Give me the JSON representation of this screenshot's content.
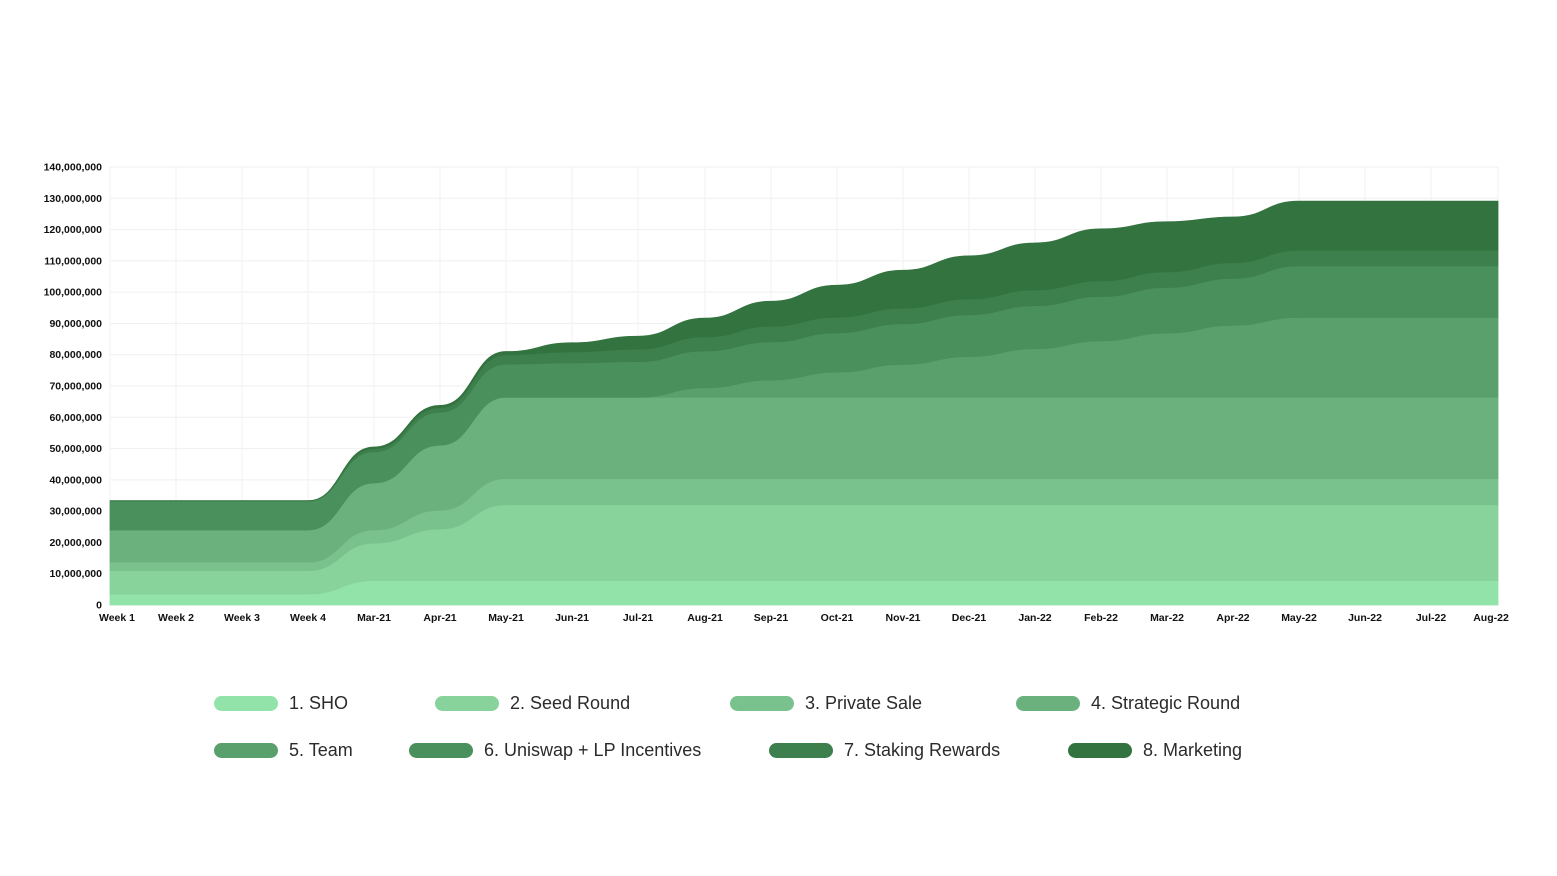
{
  "chart_data": {
    "type": "area",
    "stacked": true,
    "x": [
      "Week 1",
      "Week 2",
      "Week 3",
      "Week 4",
      "Mar-21",
      "Apr-21",
      "May-21",
      "Jun-21",
      "Jul-21",
      "Aug-21",
      "Sep-21",
      "Oct-21",
      "Nov-21",
      "Dec-21",
      "Jan-22",
      "Feb-22",
      "Mar-22",
      "Apr-22",
      "May-22",
      "Jun-22",
      "Jul-22",
      "Aug-22"
    ],
    "yticks": [
      "0",
      "10,000,000",
      "20,000,000",
      "30,000,000",
      "40,000,000",
      "50,000,000",
      "60,000,000",
      "70,000,000",
      "80,000,000",
      "90,000,000",
      "100,000,000",
      "110,000,000",
      "120,000,000",
      "130,000,000",
      "140,000,000"
    ],
    "ylim": [
      0,
      140000000
    ],
    "grid": true,
    "legend_position": "bottom",
    "series": [
      {
        "name": "1. SHO",
        "color": "#92e3a9",
        "values": [
          3500000,
          3500000,
          3500000,
          3500000,
          7800000,
          7800000,
          7800000,
          7800000,
          7800000,
          7800000,
          7800000,
          7800000,
          7800000,
          7800000,
          7800000,
          7800000,
          7800000,
          7800000,
          7800000,
          7800000,
          7800000,
          7800000
        ]
      },
      {
        "name": "2. Seed Round",
        "color": "#88d29c",
        "values": [
          7500000,
          7500000,
          7500000,
          7500000,
          12000000,
          16500000,
          24200000,
          24200000,
          24200000,
          24200000,
          24200000,
          24200000,
          24200000,
          24200000,
          24200000,
          24200000,
          24200000,
          24200000,
          24200000,
          24200000,
          24200000,
          24200000
        ]
      },
      {
        "name": "3. Private Sale",
        "color": "#79c18d",
        "values": [
          2700000,
          2700000,
          2700000,
          2700000,
          4200000,
          6000000,
          8400000,
          8400000,
          8400000,
          8400000,
          8400000,
          8400000,
          8400000,
          8400000,
          8400000,
          8400000,
          8400000,
          8400000,
          8400000,
          8400000,
          8400000,
          8400000
        ]
      },
      {
        "name": "4. Strategic Round",
        "color": "#6bb17e",
        "values": [
          10300000,
          10300000,
          10300000,
          10300000,
          15000000,
          20800000,
          26000000,
          26000000,
          26000000,
          26000000,
          26000000,
          26000000,
          26000000,
          26000000,
          26000000,
          26000000,
          26000000,
          26000000,
          26000000,
          26000000,
          26000000,
          26000000
        ]
      },
      {
        "name": "5. Team",
        "color": "#5aa06d",
        "values": [
          0,
          0,
          0,
          0,
          0,
          0,
          0,
          0,
          0,
          3000000,
          5500000,
          8000000,
          10500000,
          13000000,
          15500000,
          18000000,
          20500000,
          23000000,
          25500000,
          25500000,
          25500000,
          25500000
        ]
      },
      {
        "name": "6. Uniswap + LP Incentives",
        "color": "#4a905c",
        "values": [
          9300000,
          9300000,
          9300000,
          9300000,
          10000000,
          10500000,
          10600000,
          11000000,
          11400000,
          11800000,
          12200000,
          12600000,
          13000000,
          13400000,
          13800000,
          14200000,
          14600000,
          15000000,
          16500000,
          16500000,
          16500000,
          16500000
        ]
      },
      {
        "name": "7. Staking Rewards",
        "color": "#3d7f4d",
        "values": [
          0,
          0,
          0,
          0,
          1000000,
          1500000,
          3000000,
          3500000,
          4000000,
          4500000,
          5000000,
          5000000,
          5000000,
          5000000,
          5000000,
          5000000,
          5000000,
          5000000,
          5000000,
          5000000,
          5000000,
          5000000
        ]
      },
      {
        "name": "8. Marketing",
        "color": "#33733f",
        "values": [
          0,
          0,
          0,
          0,
          500000,
          700000,
          1000000,
          2900000,
          4100000,
          6000000,
          8000000,
          10200000,
          12100000,
          13800000,
          15000000,
          16600000,
          16000000,
          14600000,
          15700000,
          15700000,
          15700000,
          15700000
        ]
      }
    ]
  }
}
